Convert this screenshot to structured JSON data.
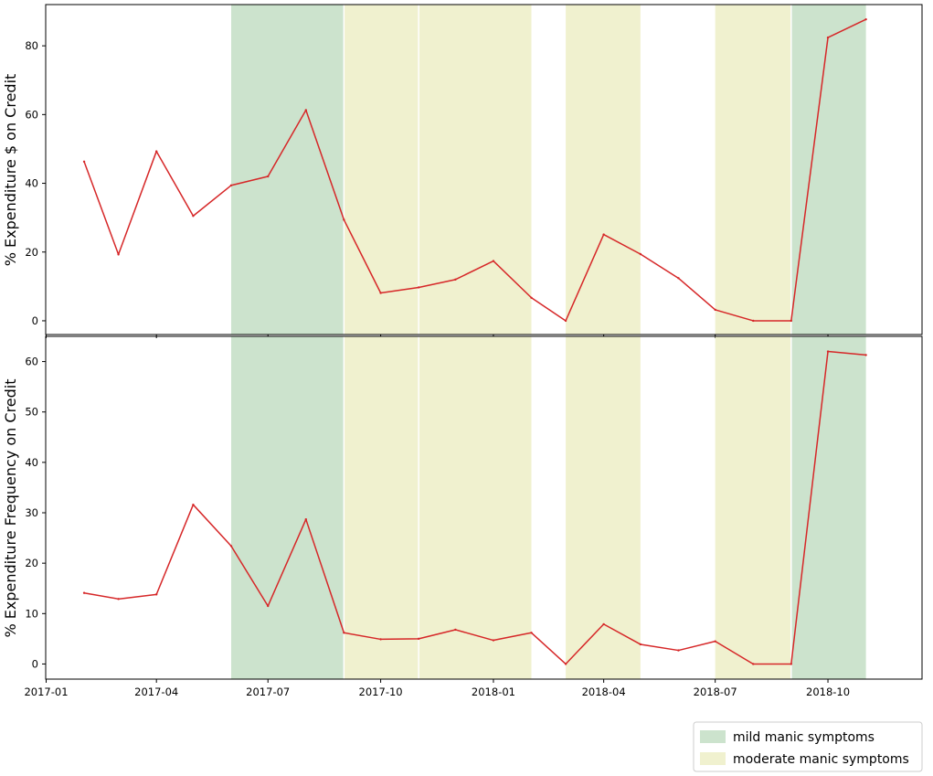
{
  "chart_data": [
    {
      "type": "line",
      "ylabel": "% Expenditure $ on Credit",
      "xlabel": "",
      "title": "",
      "ylim": [
        -4,
        92
      ],
      "yticks": [
        0,
        20,
        40,
        60,
        80
      ],
      "x": [
        "2017-02",
        "2017-03",
        "2017-04",
        "2017-05",
        "2017-06",
        "2017-07",
        "2017-08",
        "2017-09",
        "2017-10",
        "2017-11",
        "2017-12",
        "2018-01",
        "2018-02",
        "2018-03",
        "2018-04",
        "2018-05",
        "2018-06",
        "2018-07",
        "2018-08",
        "2018-09",
        "2018-10",
        "2018-11"
      ],
      "series": [
        {
          "values": [
            46.3,
            19.3,
            49.3,
            30.5,
            39.4,
            42.0,
            61.3,
            29.4,
            8.1,
            9.7,
            12.0,
            17.4,
            6.7,
            0.0,
            25.1,
            19.4,
            12.4,
            3.2,
            0.0,
            0.0,
            82.4,
            87.7
          ]
        }
      ]
    },
    {
      "type": "line",
      "ylabel": "% Expenditure Frequency on Credit",
      "xlabel": "",
      "title": "",
      "ylim": [
        -3,
        65
      ],
      "yticks": [
        0,
        10,
        20,
        30,
        40,
        50,
        60
      ],
      "x": [
        "2017-02",
        "2017-03",
        "2017-04",
        "2017-05",
        "2017-06",
        "2017-07",
        "2017-08",
        "2017-09",
        "2017-10",
        "2017-11",
        "2017-12",
        "2018-01",
        "2018-02",
        "2018-03",
        "2018-04",
        "2018-05",
        "2018-06",
        "2018-07",
        "2018-08",
        "2018-09",
        "2018-10",
        "2018-11"
      ],
      "series": [
        {
          "values": [
            14.1,
            12.9,
            13.8,
            31.6,
            23.4,
            11.5,
            28.7,
            6.2,
            4.9,
            5.0,
            6.8,
            4.7,
            6.2,
            0.0,
            7.9,
            3.9,
            2.7,
            4.5,
            0.0,
            0.0,
            62.0,
            61.3
          ]
        }
      ]
    }
  ],
  "x_tick_labels": [
    "2017-01",
    "2017-04",
    "2017-07",
    "2017-10",
    "2018-01",
    "2018-04",
    "2018-07",
    "2018-10"
  ],
  "x_tick_dates": [
    "2017-01-01",
    "2017-04-01",
    "2017-07-01",
    "2017-10-01",
    "2018-01-01",
    "2018-04-01",
    "2018-07-01",
    "2018-10-01"
  ],
  "x_range": [
    "2017-01-01",
    "2018-11-30"
  ],
  "line_color": "#d62728",
  "shaded_periods": [
    {
      "start": "2017-06-01",
      "end": "2017-09-01",
      "category": "mild"
    },
    {
      "start": "2017-09-01",
      "end": "2017-11-01",
      "category": "moderate"
    },
    {
      "start": "2017-11-01",
      "end": "2018-02-01",
      "category": "moderate"
    },
    {
      "start": "2018-03-01",
      "end": "2018-05-01",
      "category": "moderate"
    },
    {
      "start": "2018-07-01",
      "end": "2018-09-01",
      "category": "moderate"
    },
    {
      "start": "2018-09-01",
      "end": "2018-11-01",
      "category": "mild"
    }
  ],
  "legend": {
    "placement": "bottom-right",
    "items": [
      {
        "key": "mild",
        "label": "mild manic symptoms",
        "color": "#cce3cd"
      },
      {
        "key": "moderate",
        "label": "moderate manic symptoms",
        "color": "#f0f1cf"
      }
    ]
  }
}
